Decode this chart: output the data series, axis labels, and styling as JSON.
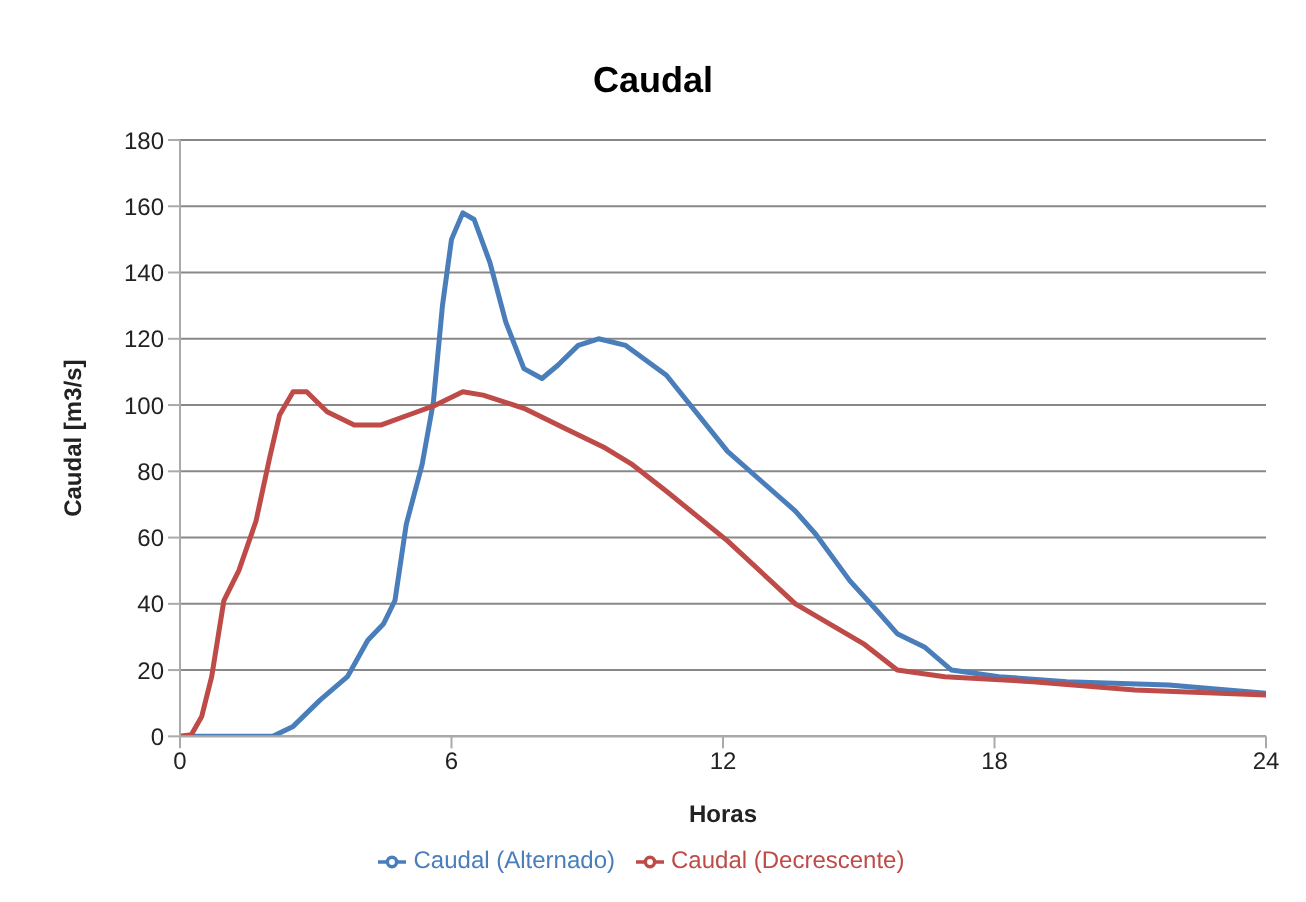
{
  "chart_data": {
    "type": "line",
    "title": "Caudal",
    "xlabel": "Horas",
    "ylabel": "Caudal [m3/s]",
    "xlim": [
      0,
      24
    ],
    "xticks": [
      0,
      6,
      12,
      18,
      24
    ],
    "ylim": [
      0,
      180
    ],
    "yticks": [
      0,
      20,
      40,
      60,
      80,
      100,
      120,
      140,
      160,
      180
    ],
    "grid": "y",
    "legend": "bottom",
    "marker": "none",
    "line_style": "solid",
    "series": [
      {
        "name": "Caudal (Alternado)",
        "color": "#4a7ebb",
        "x": [
          0,
          2.05,
          2.5,
          3.1,
          3.7,
          4.15,
          4.5,
          4.75,
          5.0,
          5.35,
          5.6,
          5.8,
          6.0,
          6.25,
          6.5,
          6.85,
          7.2,
          7.6,
          8.0,
          8.35,
          8.8,
          9.25,
          9.85,
          10.75,
          12.1,
          13.6,
          14.05,
          14.8,
          15.4,
          15.85,
          16.45,
          17.05,
          18.1,
          19.6,
          21.85,
          24
        ],
        "values": [
          0,
          0,
          3,
          11,
          18,
          29,
          34,
          41,
          64,
          82,
          101,
          130,
          150,
          158,
          156,
          143,
          125,
          111,
          108,
          112,
          118,
          120,
          118,
          109,
          86,
          68,
          61,
          47,
          38,
          31,
          27,
          20,
          18,
          16.5,
          15.5,
          13
        ]
      },
      {
        "name": "Caudal (Decrescente)",
        "color": "#be4b48",
        "x": [
          0,
          0.25,
          0.48,
          0.7,
          0.97,
          1.3,
          1.68,
          1.98,
          2.2,
          2.5,
          2.8,
          3.25,
          3.85,
          4.45,
          5.05,
          5.65,
          6.25,
          6.7,
          7.6,
          8.5,
          9.4,
          10.0,
          10.75,
          12.1,
          13.6,
          15.1,
          15.85,
          16.9,
          18.85,
          21.1,
          24
        ],
        "values": [
          0,
          0.5,
          6,
          18,
          41,
          50,
          65,
          84,
          97,
          104,
          104,
          98,
          94,
          94,
          97,
          100,
          104,
          103,
          99,
          93,
          87,
          82,
          74,
          59,
          40,
          28,
          20,
          18,
          16.5,
          14,
          12.5
        ]
      }
    ]
  }
}
